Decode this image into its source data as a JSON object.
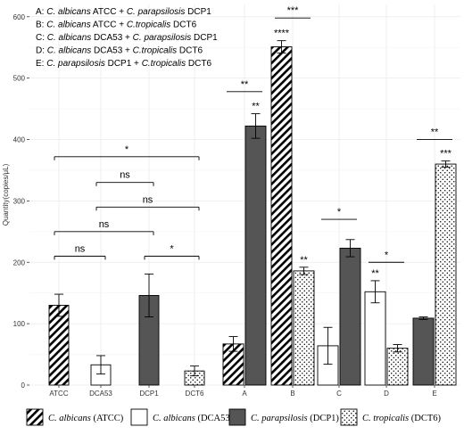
{
  "chart_data": {
    "type": "bar",
    "ylabel": "Quantity(copies/μL)",
    "xlabel": "",
    "ylim": [
      0,
      620
    ],
    "yticks": [
      0,
      100,
      200,
      300,
      400,
      500,
      600
    ],
    "grid": true,
    "legend_position": "bottom",
    "annotations": [
      {
        "prefix": "A: ",
        "parts": [
          [
            "C. albicans",
            true
          ],
          [
            " ATCC + ",
            false
          ],
          [
            "C. parapsilosis",
            true
          ],
          [
            " DCP1",
            false
          ]
        ]
      },
      {
        "prefix": "B: ",
        "parts": [
          [
            "C. albicans",
            true
          ],
          [
            " ATCC + ",
            false
          ],
          [
            "C.tropicalis",
            true
          ],
          [
            " DCT6",
            false
          ]
        ]
      },
      {
        "prefix": "C: ",
        "parts": [
          [
            "C. albicans",
            true
          ],
          [
            " DCA53 + ",
            false
          ],
          [
            "C. parapsilosis",
            true
          ],
          [
            " DCP1",
            false
          ]
        ]
      },
      {
        "prefix": "D: ",
        "parts": [
          [
            "C. albicans",
            true
          ],
          [
            " DCA53 + ",
            false
          ],
          [
            "C.tropicalis",
            true
          ],
          [
            " DCT6",
            false
          ]
        ]
      },
      {
        "prefix": "E: ",
        "parts": [
          [
            "C. parapsilosis",
            true
          ],
          [
            " DCP1 + ",
            false
          ],
          [
            "C.tropicalis",
            true
          ],
          [
            " DCT6",
            false
          ]
        ]
      }
    ],
    "categories": [
      "ATCC",
      "DCA53",
      "DCP1",
      "DCT6",
      "A",
      "B",
      "C",
      "D",
      "E"
    ],
    "legend": [
      {
        "key": "atcc",
        "species": "C. albicans",
        "strain": " (ATCC)"
      },
      {
        "key": "dca53",
        "species": "C. albicans",
        "strain": " (DCA53)"
      },
      {
        "key": "dcp1",
        "species": "C. parapsilosis",
        "strain": " (DCP1)"
      },
      {
        "key": "dct6",
        "species": "C. tropicalis",
        "strain": " (DCT6)"
      }
    ],
    "bars": [
      {
        "category": "ATCC",
        "series": "atcc",
        "value": 130,
        "error": 18
      },
      {
        "category": "DCA53",
        "series": "dca53",
        "value": 33,
        "error": 15
      },
      {
        "category": "DCP1",
        "series": "dcp1",
        "value": 146,
        "error": 35
      },
      {
        "category": "DCT6",
        "series": "dct6",
        "value": 23,
        "error": 8
      },
      {
        "category": "A",
        "series": "atcc",
        "value": 67,
        "error": 12
      },
      {
        "category": "A",
        "series": "dcp1",
        "value": 422,
        "error": 20
      },
      {
        "category": "B",
        "series": "atcc",
        "value": 551,
        "error": 10
      },
      {
        "category": "B",
        "series": "dct6",
        "value": 186,
        "error": 6
      },
      {
        "category": "C",
        "series": "dca53",
        "value": 64,
        "error": 30
      },
      {
        "category": "C",
        "series": "dcp1",
        "value": 223,
        "error": 14
      },
      {
        "category": "D",
        "series": "dca53",
        "value": 152,
        "error": 18
      },
      {
        "category": "D",
        "series": "dct6",
        "value": 60,
        "error": 6
      },
      {
        "category": "E",
        "series": "dcp1",
        "value": 109,
        "error": 2
      },
      {
        "category": "E",
        "series": "dct6",
        "value": 360,
        "error": 5
      }
    ],
    "bar_labels": [
      {
        "category": "A",
        "series": "dcp1",
        "text": "**"
      },
      {
        "category": "B",
        "series": "atcc",
        "text": "****"
      },
      {
        "category": "B",
        "series": "dct6",
        "text": "**"
      },
      {
        "category": "D",
        "series": "dca53",
        "text": "**"
      },
      {
        "category": "E",
        "series": "dct6",
        "text": "***"
      }
    ],
    "comparisons": [
      {
        "from": "ATCC",
        "to": "DCT6",
        "y": 372,
        "label": "*"
      },
      {
        "from": "DCA53",
        "to": "DCP1",
        "y": 330,
        "label": "ns"
      },
      {
        "from": "DCA53",
        "to": "DCT6",
        "y": 290,
        "label": "ns"
      },
      {
        "from": "ATCC",
        "to": "DCP1",
        "y": 250,
        "label": "ns"
      },
      {
        "from": "ATCC",
        "to": "DCA53",
        "y": 210,
        "label": "ns"
      },
      {
        "from": "DCP1",
        "to": "DCT6",
        "y": 210,
        "label": "*"
      },
      {
        "from": "A",
        "to": "A",
        "y": 478,
        "label": "**"
      },
      {
        "from": "B",
        "to": "B",
        "y": 598,
        "label": "***"
      },
      {
        "from": "C",
        "to": "C",
        "y": 270,
        "label": "*"
      },
      {
        "from": "D",
        "to": "D",
        "y": 200,
        "label": "*"
      },
      {
        "from": "E",
        "to": "E",
        "y": 400,
        "label": "**"
      }
    ]
  },
  "colors": {
    "dark_bar": "#555555",
    "outline": "#000000",
    "grid": "#ebebeb",
    "tick_text": "#333333",
    "panel_background": "#ffffff"
  }
}
